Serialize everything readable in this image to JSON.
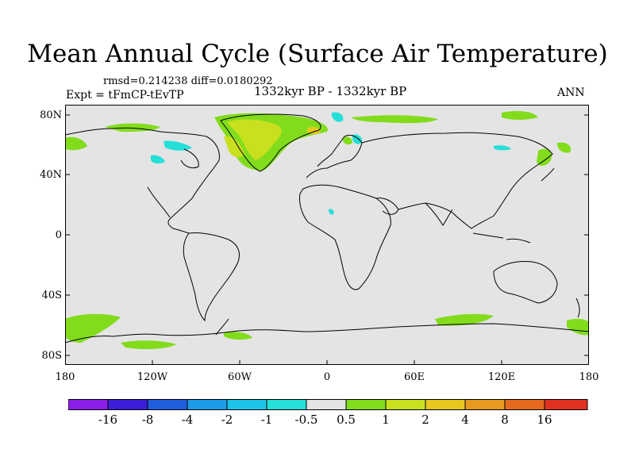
{
  "title": "Mean Annual Cycle (Surface Air Temperature)",
  "stats": {
    "rmsd_label": "rmsd=",
    "rmsd_value": "0.214238",
    "diff_label": "diff=",
    "diff_value": "0.0180292"
  },
  "left_label": "Expt = tFmCP-tEvTP",
  "center_label": "1332kyr BP - 1332kyr BP",
  "right_label": "ANN",
  "axes": {
    "y_ticks": [
      "80N",
      "40N",
      "0",
      "40S",
      "80S"
    ],
    "x_ticks": [
      "180",
      "120W",
      "60W",
      "0",
      "60E",
      "120E",
      "180"
    ]
  },
  "colorbar": {
    "labels": [
      "-16",
      "-8",
      "-4",
      "-2",
      "-1",
      "-0.5",
      "0.5",
      "1",
      "2",
      "4",
      "8",
      "16"
    ],
    "colors": [
      "#8a1ee8",
      "#3b1ed8",
      "#1e5fe0",
      "#1e9be8",
      "#1ec4e8",
      "#24e0d8",
      "#e4e4e4",
      "#82dc1c",
      "#c8e01e",
      "#e6c81e",
      "#e69a1e",
      "#e66a1e",
      "#e0321e"
    ]
  },
  "colors": {
    "background": "#e4e4e4",
    "coastline": "#000000"
  }
}
